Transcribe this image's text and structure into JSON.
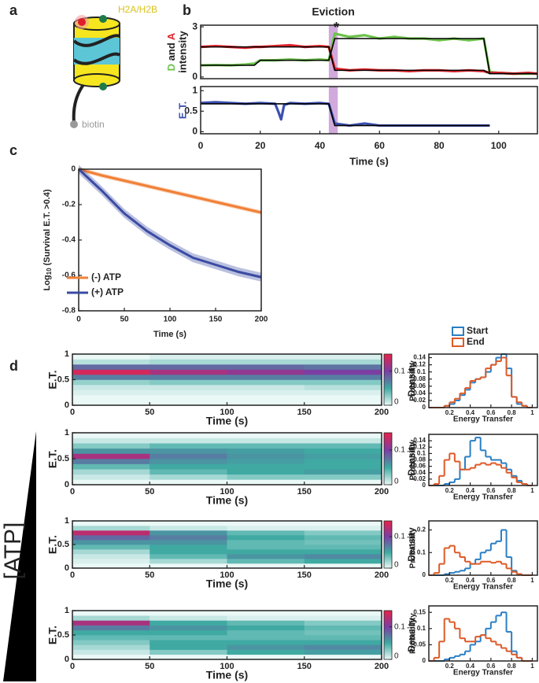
{
  "panel_labels": [
    "a",
    "b",
    "c",
    "d"
  ],
  "diagram": {
    "labels": [
      "H2A/H2B",
      "biotin"
    ]
  },
  "atp_label": "[ATP]",
  "chart_data": [
    {
      "type": "trace",
      "title": "Eviction",
      "annotation": "*",
      "highlight": [
        43,
        46
      ],
      "ylabel": [
        "D",
        " and ",
        "A"
      ],
      "ylabel2": "intensity",
      "x": [
        0,
        5,
        10,
        15,
        18,
        20,
        25,
        30,
        35,
        40,
        43,
        45,
        50,
        55,
        60,
        65,
        70,
        75,
        80,
        85,
        90,
        95,
        97,
        100,
        105,
        110,
        113
      ],
      "xlim": [
        0,
        113
      ],
      "ylim": [
        -0.1,
        3.1
      ],
      "yticks": [
        0,
        3
      ],
      "series": [
        {
          "color": "#6cc24a",
          "values": [
            0.7,
            0.72,
            0.7,
            0.75,
            0.8,
            1.0,
            1.0,
            1.05,
            1.0,
            1.05,
            1.0,
            2.6,
            2.4,
            2.5,
            2.3,
            2.4,
            2.3,
            2.3,
            2.2,
            2.3,
            2.2,
            2.3,
            0.3,
            0.25,
            0.2,
            0.2,
            0.2
          ]
        },
        {
          "color": "#e0242b",
          "values": [
            1.8,
            1.85,
            1.8,
            1.75,
            1.8,
            1.8,
            1.85,
            1.9,
            1.8,
            1.85,
            1.8,
            0.5,
            0.4,
            0.45,
            0.4,
            0.4,
            0.35,
            0.4,
            0.4,
            0.35,
            0.4,
            0.35,
            0.25,
            0.25,
            0.2,
            0.25,
            0.2
          ]
        },
        {
          "color": "#000000",
          "values": [
            0.7,
            0.7,
            0.7,
            0.7,
            0.7,
            1.0,
            1.0,
            1.0,
            1.0,
            1.0,
            1.0,
            2.3,
            2.3,
            2.3,
            2.3,
            2.3,
            2.3,
            2.3,
            2.3,
            2.3,
            2.3,
            2.3,
            0.2,
            0.2,
            0.2,
            0.2,
            0.2
          ]
        },
        {
          "color": "#000000",
          "values": [
            1.8,
            1.8,
            1.8,
            1.8,
            1.8,
            1.8,
            1.8,
            1.8,
            1.8,
            1.8,
            1.8,
            0.4,
            0.4,
            0.4,
            0.4,
            0.4,
            0.4,
            0.4,
            0.4,
            0.4,
            0.4,
            0.4,
            0.2,
            0.2,
            0.2,
            0.2,
            0.2
          ]
        }
      ]
    },
    {
      "type": "trace",
      "highlight": [
        43,
        46
      ],
      "xlabel": "Time (s)",
      "ylabel": "E.T.",
      "x": [
        0,
        5,
        10,
        15,
        20,
        25,
        26,
        27,
        28,
        30,
        35,
        40,
        43,
        45,
        50,
        55,
        60,
        70,
        80,
        90,
        97
      ],
      "xlim": [
        0,
        113
      ],
      "xticks": [
        0,
        20,
        40,
        60,
        80,
        100
      ],
      "ylim": [
        -0.05,
        1.1
      ],
      "yticks": [
        0,
        0.5,
        1
      ],
      "series": [
        {
          "color": "#3b4fb0",
          "values": [
            0.7,
            0.72,
            0.7,
            0.68,
            0.7,
            0.68,
            0.5,
            0.3,
            0.65,
            0.7,
            0.68,
            0.7,
            0.68,
            0.2,
            0.15,
            0.2,
            0.15,
            0.15,
            0.15,
            0.15,
            0.15
          ]
        },
        {
          "color": "#000000",
          "values": [
            0.68,
            0.68,
            0.68,
            0.68,
            0.68,
            0.68,
            0.68,
            0.68,
            0.68,
            0.68,
            0.68,
            0.68,
            0.68,
            0.15,
            0.15,
            0.15,
            0.15,
            0.15,
            0.15,
            0.15,
            0.15
          ]
        }
      ]
    },
    {
      "type": "survival",
      "xlabel": "Time (s)",
      "ylabel": [
        "Log",
        "10",
        " (Survival E.T. >0.4)"
      ],
      "x": [
        0,
        25,
        50,
        75,
        100,
        125,
        150,
        175,
        200
      ],
      "xlim": [
        0,
        200
      ],
      "xticks": [
        0,
        50,
        100,
        150,
        200
      ],
      "ylim": [
        -0.8,
        0
      ],
      "yticks": [
        0,
        -0.2,
        -0.4,
        -0.6,
        -0.8
      ],
      "legend": "lower left",
      "series": [
        {
          "name": "(-) ATP",
          "color": "#f08037",
          "error": 0.012,
          "values": [
            0,
            -0.035,
            -0.065,
            -0.095,
            -0.125,
            -0.155,
            -0.185,
            -0.215,
            -0.245
          ]
        },
        {
          "name": "(+) ATP",
          "color": "#3a4ba3",
          "error": 0.025,
          "values": [
            0,
            -0.12,
            -0.25,
            -0.35,
            -0.43,
            -0.5,
            -0.54,
            -0.58,
            -0.61
          ]
        }
      ]
    },
    {
      "type": "heatmap",
      "xlabel": "Time (s)",
      "ylabel": "E.T.",
      "colorbar_label": "Density",
      "x_bins": [
        0,
        50,
        100,
        150,
        200
      ],
      "y_bins": [
        0,
        0.1,
        0.2,
        0.3,
        0.4,
        0.5,
        0.6,
        0.7,
        0.8,
        0.9,
        1
      ],
      "xlim": [
        0,
        200
      ],
      "xticks": [
        0,
        50,
        100,
        150,
        200
      ],
      "ylim": [
        0,
        1
      ],
      "yticks": [
        0,
        0.5,
        1
      ],
      "clim": [
        0,
        0.15
      ],
      "cticks": [
        0,
        0.1
      ],
      "colormap": [
        "#eaf8f6",
        "#3fa9a2",
        "#7b3ea3",
        "#e8224a"
      ],
      "values": [
        [
          0,
          0,
          0.005,
          0.01,
          0.025,
          0.07,
          0.14,
          0.08,
          0.015,
          0
        ],
        [
          0,
          0,
          0.005,
          0.01,
          0.03,
          0.07,
          0.12,
          0.08,
          0.02,
          0.005
        ],
        [
          0,
          0,
          0.005,
          0.01,
          0.03,
          0.07,
          0.11,
          0.08,
          0.02,
          0.005
        ],
        [
          0,
          0,
          0.005,
          0.015,
          0.03,
          0.07,
          0.1,
          0.075,
          0.02,
          0.005
        ]
      ]
    },
    {
      "type": "heatmap",
      "xlabel": "Time (s)",
      "ylabel": "E.T.",
      "colorbar_label": "Density",
      "x_bins": [
        0,
        50,
        100,
        150,
        200
      ],
      "y_bins": [
        0,
        0.1,
        0.2,
        0.3,
        0.4,
        0.5,
        0.6,
        0.7,
        0.8,
        0.9,
        1
      ],
      "xlim": [
        0,
        200
      ],
      "xticks": [
        0,
        50,
        100,
        150,
        200
      ],
      "ylim": [
        0,
        1
      ],
      "yticks": [
        0,
        0.5,
        1
      ],
      "clim": [
        0,
        0.15
      ],
      "cticks": [
        0,
        0.1
      ],
      "colormap": [
        "#eaf8f6",
        "#3fa9a2",
        "#7b3ea3",
        "#e8224a"
      ],
      "values": [
        [
          0,
          0.01,
          0.02,
          0.04,
          0.07,
          0.12,
          0.06,
          0.03,
          0.01,
          0
        ],
        [
          0,
          0.02,
          0.04,
          0.05,
          0.06,
          0.07,
          0.06,
          0.04,
          0.01,
          0
        ],
        [
          0,
          0.03,
          0.05,
          0.05,
          0.055,
          0.06,
          0.055,
          0.04,
          0.01,
          0
        ],
        [
          0,
          0.03,
          0.055,
          0.05,
          0.05,
          0.055,
          0.05,
          0.04,
          0.01,
          0
        ]
      ]
    },
    {
      "type": "heatmap",
      "xlabel": "Time (s)",
      "ylabel": "E.T.",
      "colorbar_label": "Density",
      "x_bins": [
        0,
        50,
        100,
        150,
        200
      ],
      "y_bins": [
        0,
        0.1,
        0.2,
        0.3,
        0.4,
        0.5,
        0.6,
        0.7,
        0.8,
        0.9,
        1
      ],
      "xlim": [
        0,
        200
      ],
      "xticks": [
        0,
        50,
        100,
        150,
        200
      ],
      "ylim": [
        0,
        1
      ],
      "yticks": [
        0,
        0.5,
        1
      ],
      "clim": [
        0,
        0.15
      ],
      "cticks": [
        0,
        0.1
      ],
      "colormap": [
        "#eaf8f6",
        "#3fa9a2",
        "#7b3ea3",
        "#e8224a"
      ],
      "values": [
        [
          0,
          0.005,
          0.01,
          0.02,
          0.04,
          0.06,
          0.08,
          0.13,
          0.02,
          0
        ],
        [
          0,
          0.02,
          0.04,
          0.05,
          0.05,
          0.06,
          0.07,
          0.06,
          0.01,
          0
        ],
        [
          0,
          0.04,
          0.06,
          0.05,
          0.04,
          0.04,
          0.05,
          0.04,
          0.005,
          0
        ],
        [
          0,
          0.05,
          0.065,
          0.05,
          0.04,
          0.035,
          0.04,
          0.03,
          0.005,
          0
        ]
      ]
    },
    {
      "type": "heatmap",
      "xlabel": "Time (s)",
      "ylabel": "E.T.",
      "colorbar_label": "Density",
      "x_bins": [
        0,
        50,
        100,
        150,
        200
      ],
      "y_bins": [
        0,
        0.1,
        0.2,
        0.3,
        0.4,
        0.5,
        0.6,
        0.7,
        0.8,
        0.9,
        1
      ],
      "xlim": [
        0,
        200
      ],
      "xticks": [
        0,
        50,
        100,
        150,
        200
      ],
      "ylim": [
        0,
        1
      ],
      "yticks": [
        0,
        0.5,
        1
      ],
      "clim": [
        0,
        0.15
      ],
      "cticks": [
        0,
        0.1
      ],
      "colormap": [
        "#eaf8f6",
        "#3fa9a2",
        "#7b3ea3",
        "#e8224a"
      ],
      "values": [
        [
          0,
          0.01,
          0.02,
          0.03,
          0.04,
          0.05,
          0.07,
          0.12,
          0.02,
          0
        ],
        [
          0,
          0.03,
          0.05,
          0.05,
          0.04,
          0.05,
          0.06,
          0.05,
          0.01,
          0
        ],
        [
          0,
          0.05,
          0.06,
          0.05,
          0.04,
          0.04,
          0.05,
          0.04,
          0.005,
          0
        ],
        [
          0,
          0.055,
          0.065,
          0.05,
          0.04,
          0.035,
          0.04,
          0.03,
          0.005,
          0
        ]
      ]
    },
    {
      "type": "histogram",
      "xlabel": "Energy Transfer",
      "ylabel": "Probability",
      "bins": [
        0,
        0.05,
        0.1,
        0.15,
        0.2,
        0.25,
        0.3,
        0.35,
        0.4,
        0.45,
        0.5,
        0.55,
        0.6,
        0.65,
        0.7,
        0.75,
        0.8,
        0.85,
        0.9,
        0.95,
        1
      ],
      "xlim": [
        0,
        1.05
      ],
      "xticks": [
        0.2,
        0.4,
        0.6,
        0.8,
        1
      ],
      "ylim": [
        0,
        0.15
      ],
      "yticks": [
        0,
        0.02,
        0.04,
        0.06,
        0.08,
        0.1,
        0.12,
        0.14
      ],
      "series": [
        {
          "name": "Start",
          "color": "#2a7fc4",
          "values": [
            0,
            0,
            0,
            0.005,
            0.01,
            0.02,
            0.035,
            0.05,
            0.07,
            0.08,
            0.085,
            0.1,
            0.12,
            0.14,
            0.15,
            0.11,
            0.03,
            0.01,
            0.005,
            0
          ]
        },
        {
          "name": "End",
          "color": "#dd5a27",
          "values": [
            0,
            0,
            0,
            0.005,
            0.015,
            0.025,
            0.04,
            0.055,
            0.075,
            0.08,
            0.085,
            0.11,
            0.12,
            0.13,
            0.14,
            0.09,
            0.03,
            0.015,
            0.005,
            0
          ]
        }
      ]
    },
    {
      "type": "histogram",
      "xlabel": "Energy Transfer",
      "ylabel": "Probability",
      "bins": [
        0,
        0.05,
        0.1,
        0.15,
        0.2,
        0.25,
        0.3,
        0.35,
        0.4,
        0.45,
        0.5,
        0.55,
        0.6,
        0.65,
        0.7,
        0.75,
        0.8,
        0.85,
        0.9,
        0.95,
        1
      ],
      "xlim": [
        0,
        1.05
      ],
      "xticks": [
        0.2,
        0.4,
        0.6,
        0.8,
        1
      ],
      "ylim": [
        0,
        0.16
      ],
      "yticks": [
        0,
        0.02,
        0.04,
        0.06,
        0.08,
        0.1,
        0.12,
        0.14
      ],
      "series": [
        {
          "color": "#2a7fc4",
          "values": [
            0,
            0,
            0,
            0.005,
            0.01,
            0.02,
            0.05,
            0.09,
            0.14,
            0.15,
            0.11,
            0.09,
            0.08,
            0.08,
            0.07,
            0.05,
            0.03,
            0.015,
            0.005,
            0
          ]
        },
        {
          "color": "#dd5a27",
          "values": [
            0,
            0.005,
            0.03,
            0.08,
            0.1,
            0.075,
            0.05,
            0.05,
            0.055,
            0.065,
            0.07,
            0.065,
            0.07,
            0.065,
            0.055,
            0.04,
            0.025,
            0.01,
            0.005,
            0
          ]
        }
      ]
    },
    {
      "type": "histogram",
      "xlabel": "Energy Transfer",
      "ylabel": "Probability",
      "bins": [
        0,
        0.05,
        0.1,
        0.15,
        0.2,
        0.25,
        0.3,
        0.35,
        0.4,
        0.45,
        0.5,
        0.55,
        0.6,
        0.65,
        0.7,
        0.75,
        0.8,
        0.85,
        0.9,
        0.95,
        1
      ],
      "xlim": [
        0,
        1.05
      ],
      "xticks": [
        0.2,
        0.4,
        0.6,
        0.8,
        1
      ],
      "ylim": [
        0,
        0.24
      ],
      "yticks": [
        0,
        0.1,
        0.2
      ],
      "series": [
        {
          "color": "#2a7fc4",
          "values": [
            0,
            0,
            0,
            0.005,
            0.01,
            0.015,
            0.02,
            0.03,
            0.05,
            0.07,
            0.1,
            0.11,
            0.14,
            0.15,
            0.2,
            0.08,
            0.02,
            0.005,
            0,
            0
          ]
        },
        {
          "color": "#dd5a27",
          "values": [
            0,
            0.01,
            0.05,
            0.12,
            0.13,
            0.1,
            0.08,
            0.06,
            0.05,
            0.05,
            0.06,
            0.06,
            0.055,
            0.06,
            0.05,
            0.03,
            0.015,
            0.005,
            0,
            0
          ]
        }
      ]
    },
    {
      "type": "histogram",
      "xlabel": "Energy Transfer",
      "ylabel": "Probability",
      "bins": [
        0,
        0.05,
        0.1,
        0.15,
        0.2,
        0.25,
        0.3,
        0.35,
        0.4,
        0.45,
        0.5,
        0.55,
        0.6,
        0.65,
        0.7,
        0.75,
        0.8,
        0.85,
        0.9,
        0.95,
        1
      ],
      "xlim": [
        0,
        1.05
      ],
      "xticks": [
        0.2,
        0.4,
        0.6,
        0.8,
        1
      ],
      "ylim": [
        0,
        0.17
      ],
      "yticks": [
        0,
        0.05,
        0.1,
        0.15
      ],
      "series": [
        {
          "color": "#2a7fc4",
          "values": [
            0,
            0,
            0,
            0.005,
            0.01,
            0.015,
            0.02,
            0.03,
            0.05,
            0.06,
            0.08,
            0.1,
            0.12,
            0.14,
            0.15,
            0.09,
            0.03,
            0.01,
            0,
            0
          ]
        },
        {
          "color": "#dd5a27",
          "values": [
            0,
            0.01,
            0.06,
            0.13,
            0.12,
            0.1,
            0.07,
            0.06,
            0.06,
            0.075,
            0.08,
            0.07,
            0.06,
            0.05,
            0.04,
            0.03,
            0.02,
            0.01,
            0,
            0
          ]
        }
      ]
    }
  ]
}
